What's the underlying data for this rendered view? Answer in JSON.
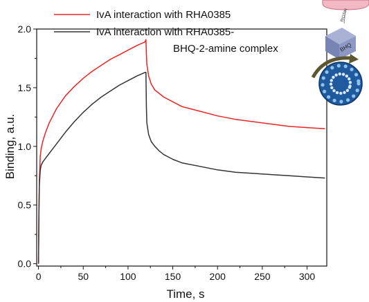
{
  "chart_data": {
    "type": "line",
    "xlabel": "Time, s",
    "ylabel": "Binding, a.u.",
    "xlim": [
      -2,
      322
    ],
    "ylim": [
      -0.02,
      2.0
    ],
    "xticks": [
      0,
      50,
      100,
      150,
      200,
      250,
      300
    ],
    "yticks": [
      "0.0",
      "0.5",
      "1.0",
      "1.5",
      "2.0"
    ],
    "grid": false,
    "legend_position": "top",
    "series": [
      {
        "name": "IvA interaction with RHA0385",
        "name_continued": "",
        "color": "#ee2222",
        "x": [
          0,
          0.5,
          1,
          2,
          3,
          5,
          8,
          12,
          16,
          20,
          30,
          40,
          50,
          60,
          70,
          80,
          90,
          100,
          110,
          119,
          120,
          120.5,
          121,
          123,
          126,
          130,
          135,
          140,
          150,
          160,
          180,
          200,
          220,
          240,
          260,
          280,
          300,
          320
        ],
        "values": [
          0.0,
          0.45,
          0.72,
          0.92,
          0.98,
          1.05,
          1.12,
          1.2,
          1.26,
          1.32,
          1.43,
          1.51,
          1.58,
          1.64,
          1.69,
          1.74,
          1.78,
          1.82,
          1.86,
          1.89,
          1.91,
          1.8,
          1.7,
          1.6,
          1.53,
          1.48,
          1.45,
          1.42,
          1.38,
          1.34,
          1.3,
          1.26,
          1.23,
          1.21,
          1.19,
          1.17,
          1.16,
          1.15
        ]
      },
      {
        "name": "IvA interaction with RHA0385-",
        "name_continued": "BHQ-2-amine complex",
        "color": "#333333",
        "x": [
          0,
          0.5,
          1,
          2,
          3,
          5,
          8,
          12,
          16,
          20,
          30,
          40,
          50,
          60,
          70,
          80,
          90,
          100,
          110,
          119,
          120,
          120.5,
          121,
          123,
          126,
          130,
          135,
          140,
          150,
          160,
          180,
          200,
          220,
          240,
          260,
          280,
          300,
          320
        ],
        "values": [
          0.0,
          0.4,
          0.68,
          0.8,
          0.84,
          0.87,
          0.9,
          0.94,
          0.98,
          1.02,
          1.12,
          1.21,
          1.29,
          1.36,
          1.42,
          1.47,
          1.52,
          1.56,
          1.6,
          1.63,
          1.63,
          1.35,
          1.2,
          1.1,
          1.04,
          1.0,
          0.96,
          0.93,
          0.89,
          0.86,
          0.83,
          0.8,
          0.78,
          0.77,
          0.76,
          0.75,
          0.74,
          0.73
        ]
      }
    ]
  },
  "inset": {
    "label_biotin": "BIOTIN",
    "label_bhq": "BHQ",
    "colors": {
      "tip": "#f2b8c4",
      "cube": "#8d99c4",
      "virus": "#1f5a9e",
      "arrow": "#5c5730"
    }
  }
}
